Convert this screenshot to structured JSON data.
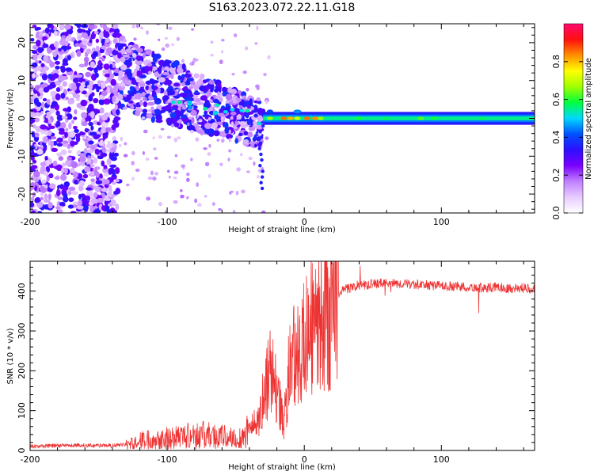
{
  "title": "S163.2023.072.22.11.G18",
  "chart_data": [
    {
      "type": "heatmap",
      "xlabel": "Height of straight line (km)",
      "ylabel": "Frequency (Hz)",
      "xlim": [
        -200,
        168
      ],
      "ylim": [
        -25,
        25
      ],
      "xticks": [
        -200,
        -100,
        0,
        100
      ],
      "yticks": [
        -20,
        -10,
        0,
        10,
        20
      ],
      "colorbar": {
        "label": "Normalized spectral amplitude",
        "range": [
          0.0,
          1.0
        ],
        "ticks": [
          0.0,
          0.2,
          0.4,
          0.6,
          0.8
        ],
        "colors": [
          "#ffffff",
          "#e8ccff",
          "#c080ff",
          "#7a00ff",
          "#2d10ff",
          "#0050ff",
          "#00d8ff",
          "#00ff40",
          "#a0ff00",
          "#ffff00",
          "#ff9000",
          "#ff1010",
          "#ff0a6e"
        ]
      },
      "regions": [
        {
          "name": "diffuse-noise",
          "x_range": [
            -200,
            -135
          ],
          "freq_range": [
            -25,
            25
          ],
          "amplitude": 0.25
        },
        {
          "name": "descending-scatter",
          "x_range": [
            -135,
            -30
          ],
          "freq_center_start": 12,
          "freq_center_end": -2,
          "amplitude": 0.35
        },
        {
          "name": "signal-band",
          "x_range": [
            -30,
            168
          ],
          "freq_range": [
            -1.5,
            1.5
          ],
          "amplitude": 0.45,
          "peak_amplitude": 0.95
        }
      ]
    },
    {
      "type": "line",
      "xlabel": "Height of straight line (km)",
      "ylabel": "SNR (10 * v/v)",
      "xlim": [
        -200,
        168
      ],
      "ylim": [
        0,
        475
      ],
      "xticks": [
        -200,
        -100,
        0,
        100
      ],
      "yticks": [
        0,
        100,
        200,
        300,
        400
      ],
      "color": "#ee3333",
      "series": [
        {
          "x": [
            -200,
            -180,
            -160,
            -140,
            -128,
            -120,
            -110,
            -100,
            -90,
            -80,
            -70,
            -60,
            -50,
            -45,
            -40,
            -35,
            -32,
            -30,
            -28,
            -25,
            -22,
            -20,
            -18,
            -15,
            -12,
            -8,
            -5,
            -2,
            0,
            3,
            5,
            8,
            10,
            12,
            15,
            18,
            20,
            25,
            30,
            40,
            50,
            60,
            70,
            80,
            90,
            100,
            110,
            120,
            130,
            140,
            150,
            160,
            168
          ],
          "values": [
            10,
            12,
            13,
            12,
            15,
            25,
            30,
            32,
            35,
            40,
            38,
            35,
            30,
            35,
            55,
            70,
            90,
            130,
            160,
            200,
            190,
            170,
            120,
            60,
            180,
            230,
            250,
            260,
            270,
            280,
            300,
            310,
            320,
            330,
            345,
            355,
            370,
            395,
            405,
            415,
            418,
            420,
            418,
            417,
            415,
            413,
            412,
            410,
            408,
            410,
            407,
            408,
            405
          ]
        }
      ]
    }
  ]
}
